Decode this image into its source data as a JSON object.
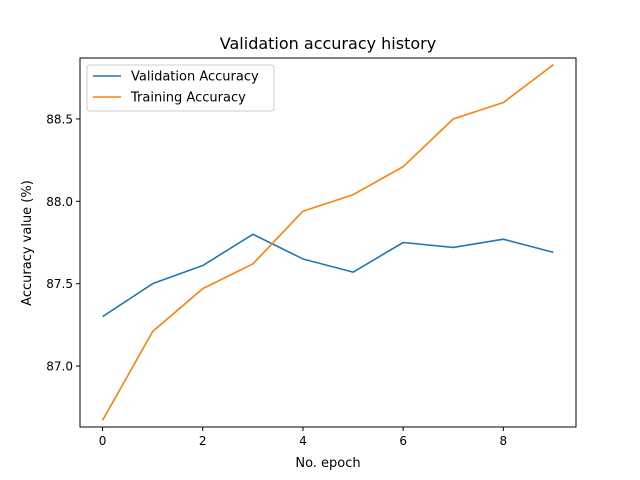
{
  "chart_data": {
    "type": "line",
    "title": "Validation accuracy history",
    "xlabel": "No. epoch",
    "ylabel": "Accuracy value (%)",
    "x": [
      0,
      1,
      2,
      3,
      4,
      5,
      6,
      7,
      8,
      9
    ],
    "xlim": [
      -0.45,
      9.45
    ],
    "ylim": [
      86.63,
      88.87
    ],
    "xticks": [
      0,
      2,
      4,
      6,
      8
    ],
    "xtick_labels": [
      "0",
      "2",
      "4",
      "6",
      "8"
    ],
    "yticks": [
      87.0,
      87.5,
      88.0,
      88.5
    ],
    "ytick_labels": [
      "87.0",
      "87.5",
      "88.0",
      "88.5"
    ],
    "grid": false,
    "legend_position": "top-left",
    "series": [
      {
        "name": "Validation Accuracy",
        "color": "#1f77b4",
        "values": [
          87.3,
          87.5,
          87.61,
          87.8,
          87.65,
          87.57,
          87.75,
          87.72,
          87.77,
          87.69
        ]
      },
      {
        "name": "Training Accuracy",
        "color": "#ff7f0e",
        "values": [
          86.67,
          87.21,
          87.47,
          87.62,
          87.94,
          88.04,
          88.21,
          88.5,
          88.6,
          88.83
        ]
      }
    ]
  }
}
